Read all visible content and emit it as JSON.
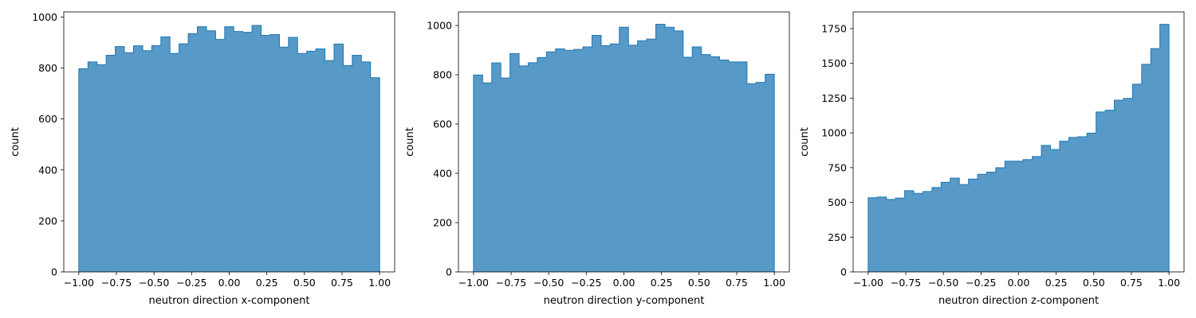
{
  "chart_data": [
    {
      "type": "histogram",
      "title": "",
      "xlabel": "neutron direction x-component",
      "ylabel": "count",
      "xlim": [
        -1.1,
        1.1
      ],
      "ylim": [
        0,
        1020
      ],
      "xticks": [
        -1.0,
        -0.75,
        -0.5,
        -0.25,
        0.0,
        0.25,
        0.5,
        0.75,
        1.0
      ],
      "xtick_labels": [
        "−1.00",
        "−0.75",
        "−0.50",
        "−0.25",
        "0.00",
        "0.25",
        "0.50",
        "0.75",
        "1.00"
      ],
      "yticks": [
        0,
        200,
        400,
        600,
        800,
        1000
      ],
      "ytick_labels": [
        "0",
        "200",
        "400",
        "600",
        "800",
        "1000"
      ],
      "bin_range": [
        -1.0,
        1.0
      ],
      "values": [
        797,
        824,
        813,
        850,
        884,
        860,
        887,
        868,
        888,
        922,
        857,
        895,
        935,
        962,
        946,
        912,
        962,
        943,
        940,
        967,
        928,
        931,
        882,
        920,
        857,
        866,
        875,
        829,
        894,
        810,
        850,
        824,
        762
      ],
      "color": "#5799c7",
      "edge_color": "#1f77b4",
      "grid": false
    },
    {
      "type": "histogram",
      "title": "",
      "xlabel": "neutron direction y-component",
      "ylabel": "count",
      "xlim": [
        -1.1,
        1.1
      ],
      "ylim": [
        0,
        1055
      ],
      "xticks": [
        -1.0,
        -0.75,
        -0.5,
        -0.25,
        0.0,
        0.25,
        0.5,
        0.75,
        1.0
      ],
      "xtick_labels": [
        "−1.00",
        "−0.75",
        "−0.50",
        "−0.25",
        "0.00",
        "0.25",
        "0.50",
        "0.75",
        "1.00"
      ],
      "yticks": [
        0,
        200,
        400,
        600,
        800,
        1000
      ],
      "ytick_labels": [
        "0",
        "200",
        "400",
        "600",
        "800",
        "1000"
      ],
      "bin_range": [
        -1.0,
        1.0
      ],
      "values": [
        799,
        767,
        848,
        787,
        886,
        836,
        849,
        870,
        893,
        905,
        899,
        903,
        913,
        960,
        918,
        925,
        993,
        920,
        938,
        945,
        1005,
        993,
        978,
        871,
        913,
        882,
        873,
        860,
        852,
        852,
        764,
        769,
        802
      ],
      "color": "#5799c7",
      "edge_color": "#1f77b4",
      "grid": false
    },
    {
      "type": "histogram",
      "title": "",
      "xlabel": "neutron direction z-component",
      "ylabel": "count",
      "xlim": [
        -1.1,
        1.1
      ],
      "ylim": [
        0,
        1870
      ],
      "xticks": [
        -1.0,
        -0.75,
        -0.5,
        -0.25,
        0.0,
        0.25,
        0.5,
        0.75,
        1.0
      ],
      "xtick_labels": [
        "−1.00",
        "−0.75",
        "−0.50",
        "−0.25",
        "0.00",
        "0.25",
        "0.50",
        "0.75",
        "1.00"
      ],
      "yticks": [
        0,
        250,
        500,
        750,
        1000,
        1250,
        1500,
        1750
      ],
      "ytick_labels": [
        "0",
        "250",
        "500",
        "750",
        "1000",
        "1250",
        "1500",
        "1750"
      ],
      "bin_range": [
        -1.0,
        1.0
      ],
      "values": [
        533,
        538,
        521,
        531,
        584,
        565,
        578,
        607,
        645,
        675,
        628,
        668,
        702,
        718,
        749,
        796,
        796,
        808,
        830,
        910,
        880,
        940,
        967,
        972,
        998,
        1150,
        1163,
        1235,
        1248,
        1350,
        1493,
        1606,
        1781
      ],
      "color": "#5799c7",
      "edge_color": "#1f77b4",
      "grid": false
    }
  ]
}
